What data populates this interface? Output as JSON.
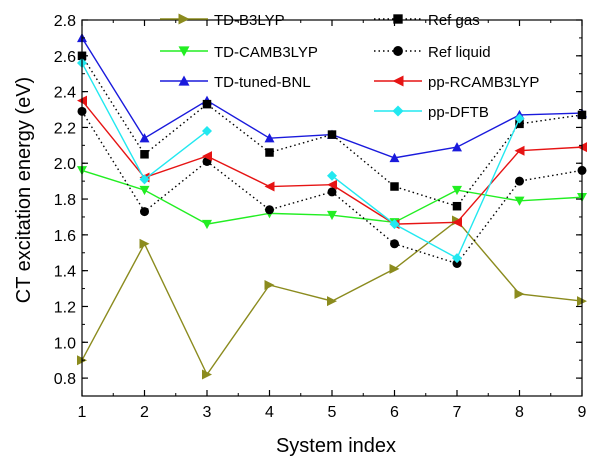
{
  "chart_data": {
    "type": "line",
    "xlabel": "System index",
    "ylabel": "CT excitation energy (eV)",
    "x": [
      1,
      2,
      3,
      4,
      5,
      6,
      7,
      8,
      9
    ],
    "xlim": [
      1,
      9
    ],
    "ylim": [
      0.7,
      2.8
    ],
    "yticks": [
      "0.8",
      "1.0",
      "1.2",
      "1.4",
      "1.6",
      "1.8",
      "2.0",
      "2.2",
      "2.4",
      "2.6",
      "2.8"
    ],
    "xticks": [
      "1",
      "2",
      "3",
      "4",
      "5",
      "6",
      "7",
      "8",
      "9"
    ],
    "legend_position": "top",
    "series": [
      {
        "name": "TD-B3LYP",
        "color": "#8b8b1e",
        "marker": "triangle-right",
        "dash": "solid",
        "values": [
          0.9,
          1.55,
          0.82,
          1.32,
          1.23,
          1.41,
          1.68,
          1.27,
          1.23
        ]
      },
      {
        "name": "TD-CAMB3LYP",
        "color": "#22ee22",
        "marker": "triangle-down",
        "dash": "solid",
        "values": [
          1.96,
          1.85,
          1.66,
          1.72,
          1.71,
          1.67,
          1.85,
          1.79,
          1.81
        ]
      },
      {
        "name": "TD-tuned-BNL",
        "color": "#1a1adc",
        "marker": "triangle-up",
        "dash": "solid",
        "values": [
          2.7,
          2.14,
          2.35,
          2.14,
          2.16,
          2.03,
          2.09,
          2.27,
          2.28
        ]
      },
      {
        "name": "Ref gas",
        "color": "#000000",
        "marker": "square",
        "dash": "dotted",
        "values": [
          2.6,
          2.05,
          2.33,
          2.06,
          2.16,
          1.87,
          1.76,
          2.22,
          2.27
        ]
      },
      {
        "name": "Ref liquid",
        "color": "#000000",
        "marker": "circle",
        "dash": "dotted",
        "values": [
          2.29,
          1.73,
          2.01,
          1.74,
          1.84,
          1.55,
          1.44,
          1.9,
          1.96
        ]
      },
      {
        "name": "pp-RCAMB3LYP",
        "color": "#e61414",
        "marker": "triangle-left",
        "dash": "solid",
        "values": [
          2.35,
          1.92,
          2.04,
          1.87,
          1.88,
          1.66,
          1.67,
          2.07,
          2.09
        ]
      },
      {
        "name": "pp-DFTB",
        "color": "#22e8f0",
        "marker": "diamond",
        "dash": "solid",
        "x": [
          1,
          2,
          3
        ],
        "values": [
          2.56,
          1.91,
          2.18
        ]
      },
      {
        "name": "pp-DFTB",
        "color": "#22e8f0",
        "marker": "diamond",
        "dash": "solid",
        "x": [
          5,
          6,
          7,
          8
        ],
        "values": [
          1.93,
          1.66,
          1.47,
          2.25
        ],
        "legend": false
      }
    ]
  }
}
